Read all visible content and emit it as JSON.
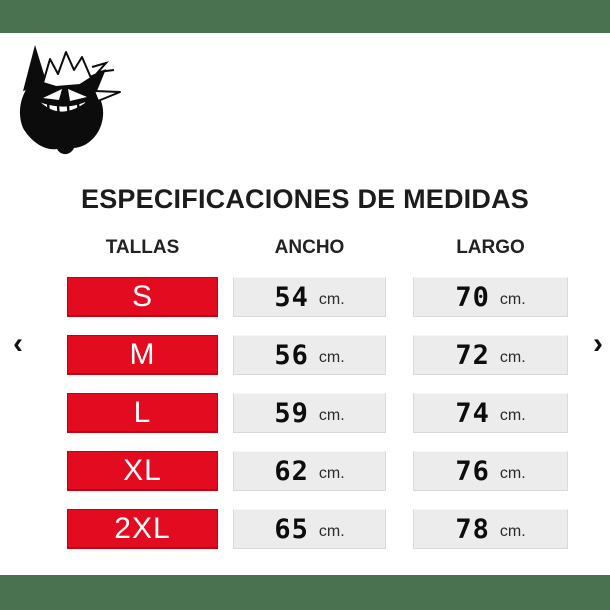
{
  "colors": {
    "badge_red": "#e30b20",
    "cell_gray": "#ececec",
    "carousel_strip_green": "#4a7150",
    "text_dark": "#1c1c1c"
  },
  "logo": {
    "name": "gengar-mascot"
  },
  "title": "ESPECIFICACIONES DE MEDIDAS",
  "table": {
    "size_header": "TALLAS",
    "width_header": "ANCHO",
    "length_header": "LARGO",
    "unit": "cm.",
    "rows": [
      {
        "size": "S",
        "ancho": "54",
        "largo": "70"
      },
      {
        "size": "M",
        "ancho": "56",
        "largo": "72"
      },
      {
        "size": "L",
        "ancho": "59",
        "largo": "74"
      },
      {
        "size": "XL",
        "ancho": "62",
        "largo": "76"
      },
      {
        "size": "2XL",
        "ancho": "65",
        "largo": "78"
      }
    ]
  },
  "carousel": {
    "prev_label": "‹",
    "next_label": "›"
  },
  "chart_data": {
    "type": "table",
    "title": "ESPECIFICACIONES DE MEDIDAS",
    "columns": [
      "TALLAS",
      "ANCHO",
      "LARGO"
    ],
    "rows": [
      [
        "S",
        "54 cm.",
        "70 cm."
      ],
      [
        "M",
        "56 cm.",
        "72 cm."
      ],
      [
        "L",
        "59 cm.",
        "74 cm."
      ],
      [
        "XL",
        "62 cm.",
        "76 cm."
      ],
      [
        "2XL",
        "65 cm.",
        "78 cm."
      ]
    ],
    "units": "cm"
  }
}
